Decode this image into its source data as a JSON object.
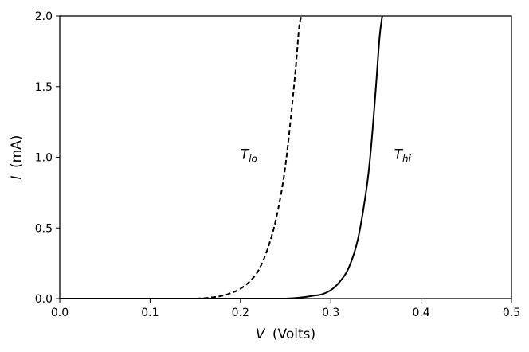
{
  "chart_data": {
    "type": "line",
    "title": "",
    "xlabel": {
      "symbol": "V",
      "unit": "(Volts)"
    },
    "ylabel": {
      "symbol": "I",
      "unit": "(mA)"
    },
    "xlim": [
      0.0,
      0.5
    ],
    "ylim": [
      0.0,
      2.0
    ],
    "xticks": [
      "0.0",
      "0.1",
      "0.2",
      "0.3",
      "0.4",
      "0.5"
    ],
    "yticks": [
      "0.0",
      "0.5",
      "1.0",
      "1.5",
      "2.0"
    ],
    "grid": false,
    "series": [
      {
        "name": "T_lo",
        "style": "dashed",
        "color": "#000000",
        "x": [
          0.0,
          0.1,
          0.15,
          0.17,
          0.18,
          0.19,
          0.2,
          0.21,
          0.22,
          0.23,
          0.24,
          0.25,
          0.26,
          0.265,
          0.268
        ],
        "y": [
          0.0,
          0.0,
          0.0,
          0.01,
          0.02,
          0.04,
          0.07,
          0.12,
          0.2,
          0.35,
          0.58,
          0.95,
          1.55,
          1.92,
          2.0
        ]
      },
      {
        "name": "T_hi",
        "style": "solid",
        "color": "#000000",
        "x": [
          0.0,
          0.2,
          0.25,
          0.27,
          0.28,
          0.29,
          0.3,
          0.31,
          0.32,
          0.33,
          0.34,
          0.345,
          0.35,
          0.354,
          0.357
        ],
        "y": [
          0.0,
          0.0,
          0.0,
          0.01,
          0.02,
          0.03,
          0.06,
          0.12,
          0.22,
          0.42,
          0.8,
          1.1,
          1.5,
          1.85,
          2.0
        ]
      }
    ],
    "annotations": [
      {
        "name": "T_lo",
        "base": "T",
        "sub": "lo",
        "x": 0.2,
        "y": 1.0
      },
      {
        "name": "T_hi",
        "base": "T",
        "sub": "hi",
        "x": 0.37,
        "y": 1.0
      }
    ]
  }
}
